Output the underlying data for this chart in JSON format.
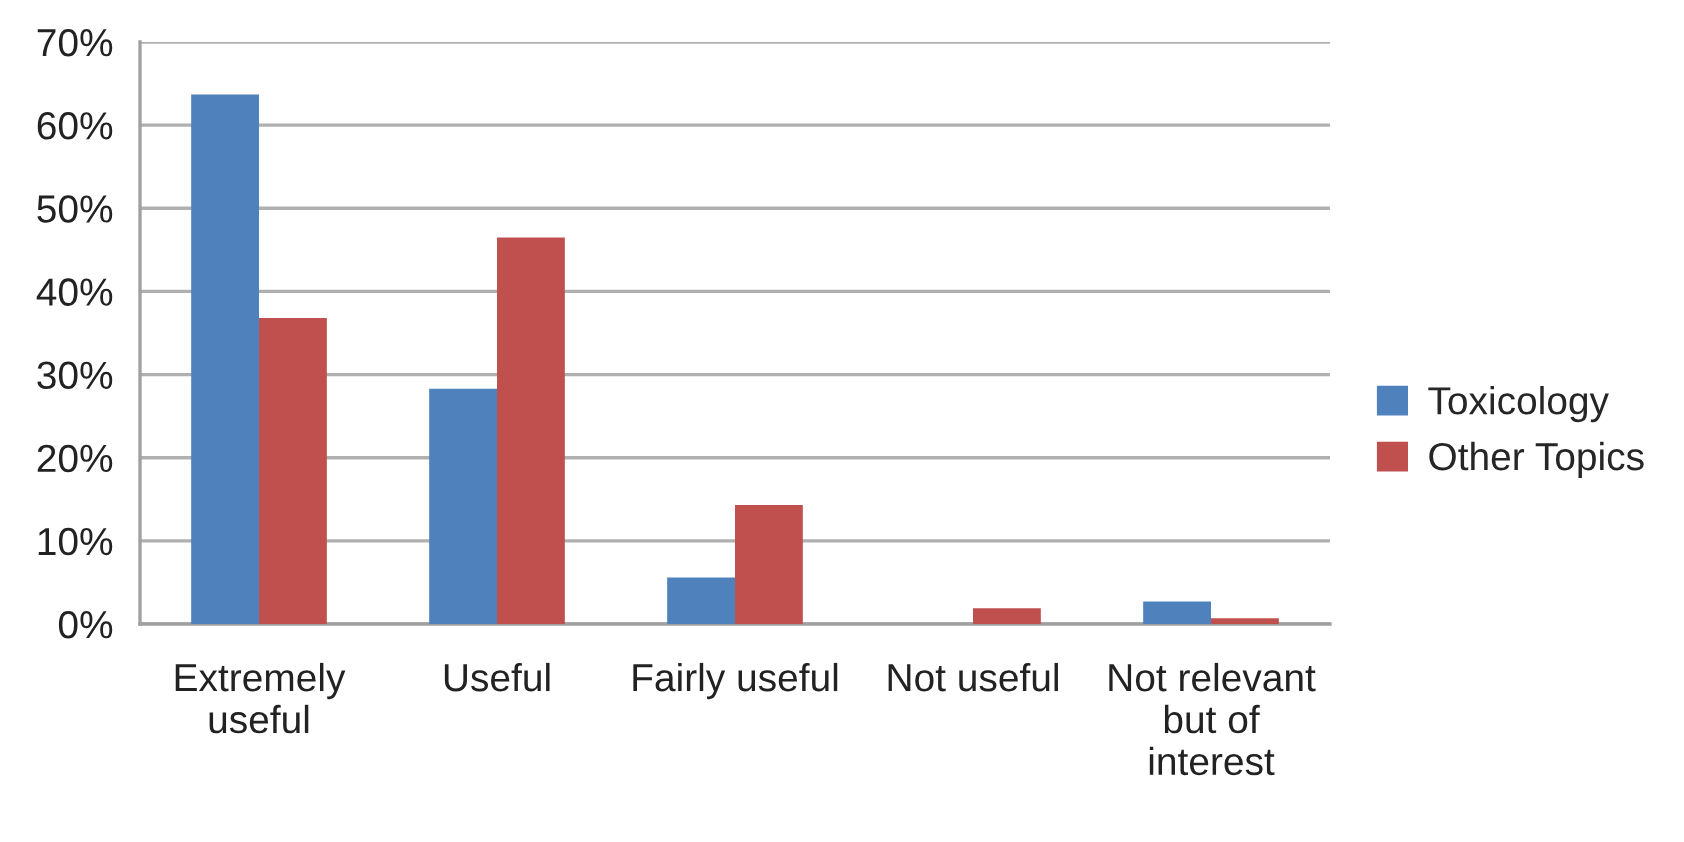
{
  "chart_data": {
    "type": "bar",
    "categories": [
      "Extremely useful",
      "Useful",
      "Fairly useful",
      "Not useful",
      "Not relevant but of interest"
    ],
    "series": [
      {
        "name": "Toxicology",
        "color": "#4f81bd",
        "values": [
          63.7,
          28.3,
          5.6,
          0,
          2.7
        ]
      },
      {
        "name": "Other Topics",
        "color": "#c0504d",
        "values": [
          36.8,
          46.5,
          14.3,
          1.9,
          0.7
        ]
      }
    ],
    "ylim": [
      0,
      70
    ],
    "yticks": [
      {
        "value": 0,
        "label": "0%"
      },
      {
        "value": 10,
        "label": "10%"
      },
      {
        "value": 20,
        "label": "20%"
      },
      {
        "value": 30,
        "label": "30%"
      },
      {
        "value": 40,
        "label": "40%"
      },
      {
        "value": 50,
        "label": "50%"
      },
      {
        "value": 60,
        "label": "60%"
      },
      {
        "value": 70,
        "label": "70%"
      }
    ],
    "grid": "y",
    "legend": "right"
  }
}
